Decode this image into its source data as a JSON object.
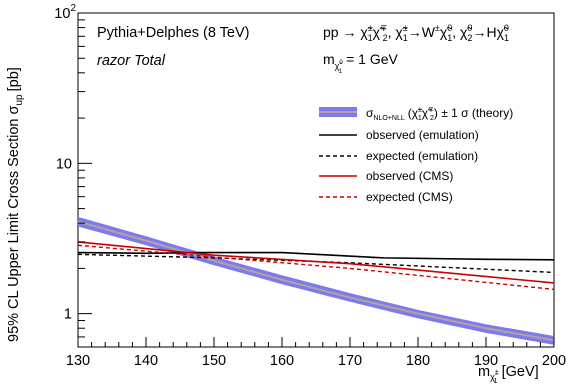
{
  "chart_data": {
    "type": "line",
    "title": "",
    "xlabel": {
      "main": "m",
      "sub": "χ̃",
      "sub_sup": "±",
      "sub_sub": "1",
      "unit": "[GeV]"
    },
    "ylabel": {
      "main": "95% CL Upper Limit Cross Section σ",
      "sub": "up",
      "unit": "[pb]"
    },
    "xlim": [
      130,
      200
    ],
    "ylim": [
      0.6,
      100
    ],
    "yscale": "log",
    "grid": false,
    "x_ticks": [
      "130",
      "140",
      "150",
      "160",
      "170",
      "180",
      "190",
      "200"
    ],
    "y_ticks": [
      {
        "value": 1,
        "label": "1"
      },
      {
        "value": 10,
        "label": "10"
      },
      {
        "value": 100,
        "label": "10",
        "sup": "2"
      }
    ],
    "annotations": {
      "generator": "Pythia+Delphes (8 TeV)",
      "selection": "razor Total",
      "process_a": "pp → χ̃",
      "process_b": "χ̃",
      "process_c": ", χ̃",
      "process_d": "→W",
      "process_e": "χ̃",
      "process_f": ",  χ̃",
      "process_g": "→H",
      "process_h": "χ̃",
      "sup_pm": "±",
      "sup_mp": "∓",
      "sup_zero": "0",
      "sub_one": "1",
      "sub_two": "2",
      "mass_prefix": "m",
      "mass_value": "= 1 GeV"
    },
    "legend": {
      "placement": "top-right",
      "theory_label": "σ",
      "theory_sub": "NLO+NLL",
      "theory_mid": "(χ̃",
      "theory_mid2": "χ̃",
      "theory_suffix": ") ± 1 σ (theory)",
      "entries": [
        "observed (emulation)",
        "expected (emulation)",
        "observed (CMS)",
        "expected (CMS)"
      ]
    },
    "series": [
      {
        "name": "σ NLO+NLL (theory)",
        "color": "#7b7bee",
        "center_color": "#b8a0a0",
        "style": "band",
        "x": [
          130,
          140,
          150,
          160,
          170,
          180,
          190,
          200
        ],
        "y": [
          4.1,
          3.06,
          2.25,
          1.68,
          1.28,
          1.0,
          0.8,
          0.665
        ],
        "y_low": [
          3.8,
          2.85,
          2.1,
          1.57,
          1.2,
          0.93,
          0.745,
          0.62
        ],
        "y_high": [
          4.4,
          3.27,
          2.4,
          1.8,
          1.37,
          1.06,
          0.85,
          0.71
        ]
      },
      {
        "name": "observed (emulation)",
        "color": "#000000",
        "style": "solid",
        "x": [
          130,
          140,
          148,
          160,
          175,
          190,
          200
        ],
        "y": [
          2.55,
          2.52,
          2.55,
          2.55,
          2.35,
          2.3,
          2.28
        ]
      },
      {
        "name": "expected (emulation)",
        "color": "#000000",
        "style": "dashed",
        "x": [
          130,
          150,
          170,
          200
        ],
        "y": [
          2.48,
          2.35,
          2.18,
          1.88
        ]
      },
      {
        "name": "observed (CMS)",
        "color": "#cc0000",
        "style": "solid",
        "x": [
          130,
          150,
          170,
          200
        ],
        "y": [
          3.0,
          2.45,
          2.15,
          1.6
        ]
      },
      {
        "name": "expected (CMS)",
        "color": "#cc0000",
        "style": "dashed",
        "x": [
          130,
          150,
          170,
          200
        ],
        "y": [
          2.85,
          2.38,
          2.0,
          1.45
        ]
      }
    ]
  }
}
